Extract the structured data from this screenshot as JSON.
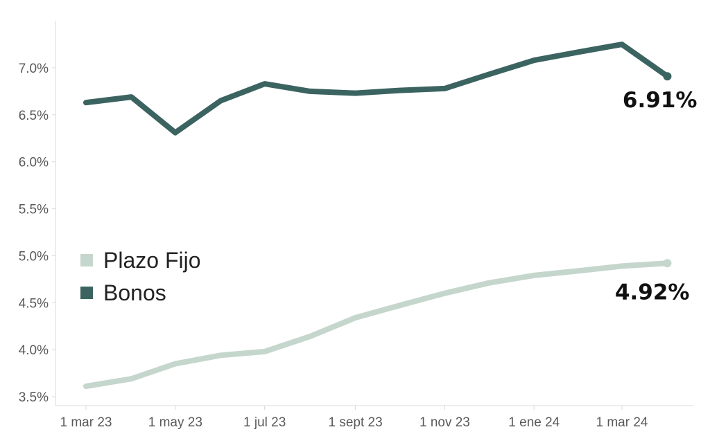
{
  "chart_data": {
    "type": "line",
    "x": [
      "2023-03-01",
      "2023-04-01",
      "2023-05-01",
      "2023-06-01",
      "2023-07-01",
      "2023-08-01",
      "2023-09-01",
      "2023-10-01",
      "2023-11-01",
      "2023-12-01",
      "2024-01-01",
      "2024-02-01",
      "2024-03-01",
      "2024-04-01"
    ],
    "x_ticks": [
      {
        "date": "2023-03-01",
        "label": "1 mar 23"
      },
      {
        "date": "2023-05-01",
        "label": "1 may 23"
      },
      {
        "date": "2023-07-01",
        "label": "1 jul 23"
      },
      {
        "date": "2023-09-01",
        "label": "1 sept 23"
      },
      {
        "date": "2023-11-01",
        "label": "1 nov 23"
      },
      {
        "date": "2024-01-01",
        "label": "1 ene 24"
      },
      {
        "date": "2024-03-01",
        "label": "1 mar 24"
      }
    ],
    "y_ticks": [
      {
        "value": 3.5,
        "label": "3.5%"
      },
      {
        "value": 4.0,
        "label": "4.0%"
      },
      {
        "value": 4.5,
        "label": "4.5%"
      },
      {
        "value": 5.0,
        "label": "5.0%"
      },
      {
        "value": 5.5,
        "label": "5.5%"
      },
      {
        "value": 6.0,
        "label": "6.0%"
      },
      {
        "value": 6.5,
        "label": "6.5%"
      },
      {
        "value": 7.0,
        "label": "7.0%"
      }
    ],
    "ylim": [
      3.45,
      7.5
    ],
    "series": [
      {
        "name": "Plazo Fijo",
        "color": "#c5d6cd",
        "values": [
          3.61,
          3.69,
          3.85,
          3.94,
          3.98,
          4.14,
          4.34,
          4.47,
          4.6,
          4.71,
          4.79,
          4.84,
          4.89,
          4.92
        ],
        "end_label": "4.92%"
      },
      {
        "name": "Bonos",
        "color": "#3b6461",
        "values": [
          6.63,
          6.69,
          6.31,
          6.65,
          6.83,
          6.75,
          6.73,
          6.76,
          6.78,
          6.93,
          7.08,
          7.17,
          7.25,
          6.91
        ],
        "end_label": "6.91%"
      }
    ],
    "legend": "middle-left",
    "grid": false,
    "title": "",
    "xlabel": "",
    "ylabel": ""
  }
}
